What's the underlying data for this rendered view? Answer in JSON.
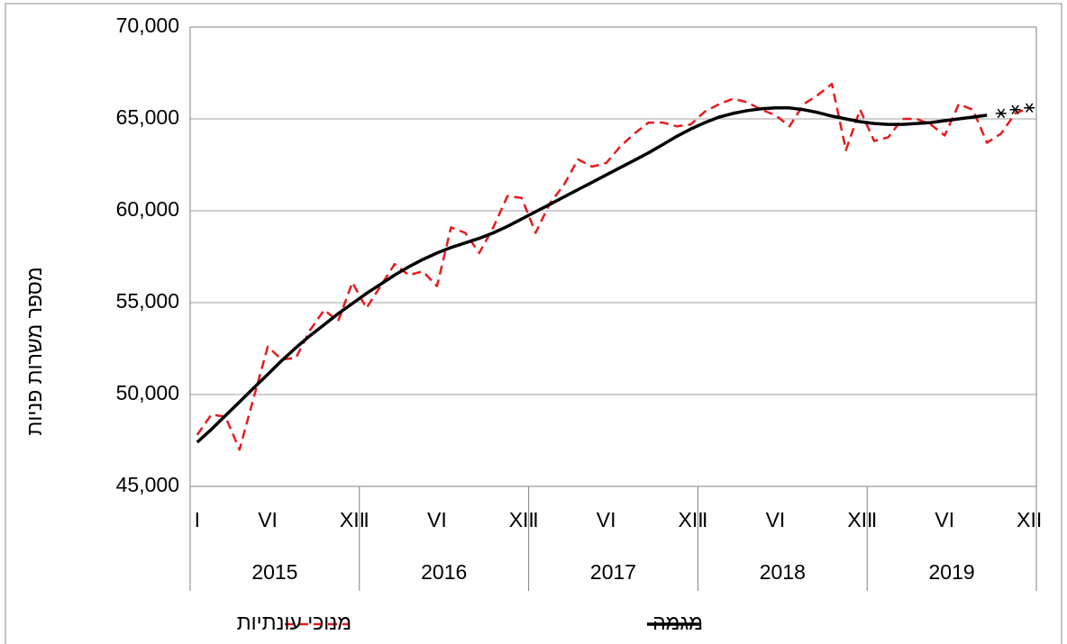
{
  "chart_data": {
    "type": "line",
    "ylabel": "מספר משרות פניות",
    "categories": [
      "I",
      null,
      null,
      null,
      null,
      "VI",
      null,
      null,
      null,
      null,
      null,
      "XII",
      "I",
      null,
      null,
      null,
      null,
      "VI",
      null,
      null,
      null,
      null,
      null,
      "XII",
      "I",
      null,
      null,
      null,
      null,
      "VI",
      null,
      null,
      null,
      null,
      null,
      "XII",
      "I",
      null,
      null,
      null,
      null,
      "VI",
      null,
      null,
      null,
      null,
      null,
      "XII",
      "I",
      null,
      null,
      null,
      null,
      "VI",
      null,
      null,
      null,
      null,
      null,
      "XII"
    ],
    "years": [
      "2015",
      "2016",
      "2017",
      "2018",
      "2019"
    ],
    "series": [
      {
        "name": "מנוכי עונתיות",
        "color": "#e8191c",
        "dash": true,
        "values": [
          47800,
          48900,
          48800,
          47000,
          49800,
          52600,
          51900,
          52000,
          53500,
          54600,
          54000,
          56100,
          54700,
          55900,
          57100,
          56500,
          56700,
          55900,
          59100,
          58800,
          57700,
          59100,
          60800,
          60700,
          58800,
          60400,
          61400,
          62800,
          62400,
          62600,
          63500,
          64200,
          64800,
          64800,
          64600,
          64700,
          65400,
          65800,
          66100,
          65900,
          65500,
          65200,
          64600,
          65800,
          66300,
          66900,
          63300,
          65500,
          63800,
          64000,
          65000,
          65000,
          64700,
          64100,
          65800,
          65500,
          63700,
          64200,
          65300,
          65600
        ]
      },
      {
        "name": "מגמה",
        "color": "#000000",
        "dash": false,
        "values": [
          47400,
          48100,
          48850,
          49600,
          50350,
          51100,
          51850,
          52550,
          53200,
          53800,
          54400,
          54950,
          55500,
          56000,
          56500,
          56950,
          57350,
          57700,
          58000,
          58250,
          58500,
          58800,
          59150,
          59550,
          59950,
          60350,
          60750,
          61150,
          61550,
          61950,
          62350,
          62750,
          63150,
          63600,
          64050,
          64450,
          64800,
          65100,
          65300,
          65450,
          65550,
          65600,
          65600,
          65500,
          65350,
          65150,
          65000,
          64850,
          64750,
          64700,
          64700,
          64750,
          64800,
          64900,
          65000,
          65100,
          65200,
          null,
          null,
          null
        ]
      },
      {
        "color": "#000000",
        "marker": "asterisk",
        "values": [
          null,
          null,
          null,
          null,
          null,
          null,
          null,
          null,
          null,
          null,
          null,
          null,
          null,
          null,
          null,
          null,
          null,
          null,
          null,
          null,
          null,
          null,
          null,
          null,
          null,
          null,
          null,
          null,
          null,
          null,
          null,
          null,
          null,
          null,
          null,
          null,
          null,
          null,
          null,
          null,
          null,
          null,
          null,
          null,
          null,
          null,
          null,
          null,
          null,
          null,
          null,
          null,
          null,
          null,
          null,
          null,
          null,
          65300,
          65500,
          65600
        ]
      }
    ],
    "ylim": [
      45000,
      70000
    ],
    "yticks": [
      {
        "value": 45000,
        "label": "45,000"
      },
      {
        "value": 50000,
        "label": "50,000"
      },
      {
        "value": 55000,
        "label": "55,000"
      },
      {
        "value": 60000,
        "label": "60,000"
      },
      {
        "value": 65000,
        "label": "65,000"
      },
      {
        "value": 70000,
        "label": "70,000"
      }
    ],
    "grid": true,
    "legend": "bottom"
  }
}
